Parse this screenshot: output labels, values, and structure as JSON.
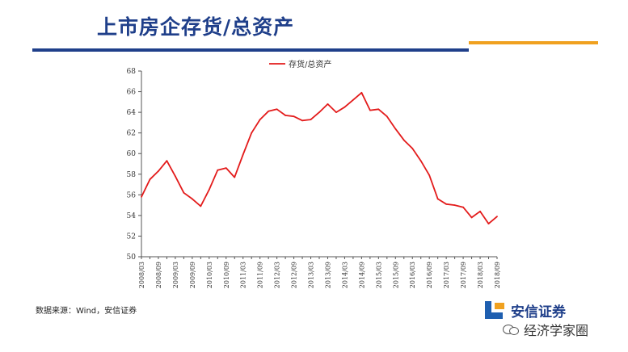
{
  "slide": {
    "title": "上市房企存货/总资产",
    "source": "数据来源：Wind，安信证券"
  },
  "logo": {
    "text": "安信证券"
  },
  "watermark": {
    "text": "经济学家圈"
  },
  "colors": {
    "title": "#1f3f8a",
    "accent": "#f0a11f",
    "series": "#e31b1b"
  },
  "chart_data": {
    "type": "line",
    "title": "",
    "xlabel": "",
    "ylabel": "",
    "ylim": [
      50,
      68
    ],
    "yticks": [
      50,
      52,
      54,
      56,
      58,
      60,
      62,
      64,
      66,
      68
    ],
    "grid": false,
    "legend_position": "top-center",
    "x": [
      "2008/03",
      "2008/06",
      "2008/09",
      "2008/12",
      "2009/03",
      "2009/06",
      "2009/09",
      "2009/12",
      "2010/03",
      "2010/06",
      "2010/09",
      "2010/12",
      "2011/03",
      "2011/06",
      "2011/09",
      "2011/12",
      "2012/03",
      "2012/06",
      "2012/09",
      "2012/12",
      "2013/03",
      "2013/06",
      "2013/09",
      "2013/12",
      "2014/03",
      "2014/06",
      "2014/09",
      "2014/12",
      "2015/03",
      "2015/06",
      "2015/09",
      "2015/12",
      "2016/03",
      "2016/06",
      "2016/09",
      "2016/12",
      "2017/03",
      "2017/06",
      "2017/09",
      "2017/12",
      "2018/03",
      "2018/06",
      "2018/09"
    ],
    "xticks": [
      "2008/03",
      "2008/09",
      "2009/03",
      "2009/09",
      "2010/03",
      "2010/09",
      "2011/03",
      "2011/09",
      "2012/03",
      "2012/09",
      "2013/03",
      "2013/09",
      "2014/03",
      "2014/09",
      "2015/03",
      "2015/09",
      "2016/03",
      "2016/09",
      "2017/03",
      "2017/09",
      "2018/03",
      "2018/09"
    ],
    "series": [
      {
        "name": "存货/总资产",
        "color": "#e31b1b",
        "values": [
          55.8,
          57.5,
          58.3,
          59.3,
          57.8,
          56.2,
          55.6,
          54.9,
          56.5,
          58.4,
          58.6,
          57.7,
          59.9,
          62.0,
          63.3,
          64.1,
          64.3,
          63.7,
          63.6,
          63.2,
          63.3,
          64.0,
          64.8,
          64.0,
          64.5,
          65.2,
          65.9,
          64.2,
          64.3,
          63.6,
          62.4,
          61.3,
          60.5,
          59.3,
          57.9,
          55.6,
          55.1,
          55.0,
          54.8,
          53.8,
          54.4,
          53.2,
          53.9
        ]
      }
    ]
  }
}
